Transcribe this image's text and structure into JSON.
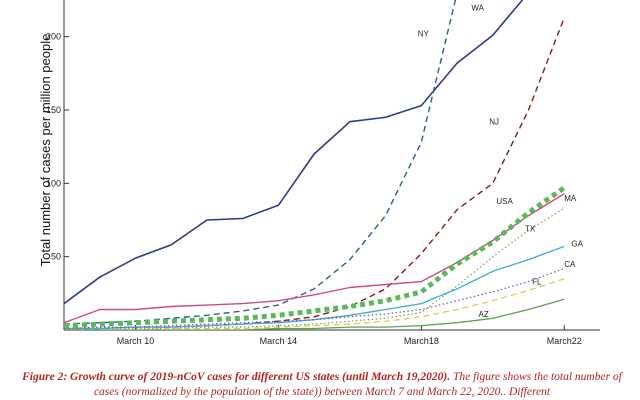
{
  "caption": {
    "label": "Figure 2:",
    "title": "Growth curve of 2019-nCoV cases for different US states (until March 19,2020).",
    "body": "The figure shows the total number of cases (normalized by the population of the state)) between March 7 and March 22, 2020.. Different"
  },
  "chart_data": {
    "type": "line",
    "ylabel": "Total number of cases per million people",
    "ylim": [
      0,
      225
    ],
    "yticks": [
      50,
      100,
      150,
      200
    ],
    "xdomain": [
      1,
      16
    ],
    "xticks": [
      {
        "x": 3,
        "label": "March 10"
      },
      {
        "x": 7,
        "label": "March 14"
      },
      {
        "x": 11,
        "label": "March18"
      },
      {
        "x": 15,
        "label": "March22"
      }
    ],
    "grid": false,
    "series": [
      {
        "name": "WA",
        "color": "#2b3a8c",
        "dash": "solid",
        "width": 1.6,
        "x": [
          1,
          2,
          3,
          4,
          5,
          6,
          7,
          8,
          9,
          10,
          11,
          12,
          13,
          14
        ],
        "y": [
          18,
          36,
          49,
          58,
          75,
          76,
          85,
          120,
          142,
          145,
          153,
          182,
          201,
          230
        ]
      },
      {
        "name": "NY",
        "color": "#2a5e8f",
        "dash": "dashed",
        "width": 1.4,
        "x": [
          1,
          2,
          3,
          4,
          5,
          6,
          7,
          8,
          9,
          10,
          11,
          12
        ],
        "y": [
          4,
          5,
          6,
          8,
          10,
          13,
          17,
          28,
          48,
          78,
          128,
          230
        ]
      },
      {
        "name": "NJ",
        "color": "#8b1a1a",
        "dash": "dashed",
        "width": 1.4,
        "x": [
          1,
          2,
          3,
          4,
          5,
          6,
          7,
          8,
          9,
          10,
          11,
          12,
          13,
          14,
          15
        ],
        "y": [
          1,
          1,
          2,
          2,
          3,
          4,
          6,
          9,
          16,
          28,
          52,
          82,
          100,
          150,
          213
        ]
      },
      {
        "name": "MA",
        "color": "#d14a7a",
        "dash": "solid",
        "width": 1.4,
        "x": [
          1,
          2,
          3,
          4,
          5,
          6,
          7,
          8,
          9,
          10,
          11,
          12,
          13,
          14,
          15
        ],
        "y": [
          5,
          14,
          14,
          16,
          17,
          18,
          20,
          24,
          29,
          31,
          33,
          46,
          61,
          78,
          93
        ]
      },
      {
        "name": "TX",
        "color": "#6aa84f",
        "dash": "dotted",
        "width": 1.2,
        "x": [
          1,
          2,
          3,
          4,
          5,
          6,
          7,
          8,
          9,
          10,
          11,
          12,
          13,
          14,
          15
        ],
        "y": [
          1,
          1,
          1,
          1,
          2,
          2,
          3,
          4,
          6,
          8,
          12,
          30,
          50,
          68,
          83
        ]
      },
      {
        "name": "GA",
        "color": "#3fa9d5",
        "dash": "solid",
        "width": 1.3,
        "x": [
          1,
          2,
          3,
          4,
          5,
          6,
          7,
          8,
          9,
          10,
          11,
          12,
          13,
          14,
          15
        ],
        "y": [
          1,
          1,
          2,
          2,
          3,
          4,
          5,
          7,
          10,
          14,
          18,
          28,
          40,
          48,
          57
        ]
      },
      {
        "name": "CA",
        "color": "#7b4fb3",
        "dash": "dotted",
        "width": 1.2,
        "x": [
          1,
          2,
          3,
          4,
          5,
          6,
          7,
          8,
          9,
          10,
          11,
          12,
          13,
          14,
          15
        ],
        "y": [
          1,
          2,
          2,
          3,
          4,
          5,
          6,
          7,
          9,
          11,
          14,
          20,
          26,
          33,
          42
        ]
      },
      {
        "name": "FL",
        "color": "#e3c24d",
        "dash": "dashed",
        "width": 1.2,
        "x": [
          1,
          2,
          3,
          4,
          5,
          6,
          7,
          8,
          9,
          10,
          11,
          12,
          13,
          14,
          15
        ],
        "y": [
          0,
          0,
          0,
          1,
          1,
          1,
          2,
          3,
          4,
          6,
          9,
          14,
          20,
          27,
          35
        ]
      },
      {
        "name": "AZ",
        "color": "#5aa64a",
        "dash": "solid",
        "width": 1.3,
        "x": [
          1,
          2,
          3,
          4,
          5,
          6,
          7,
          8,
          9,
          10,
          11,
          12,
          13,
          14,
          15
        ],
        "y": [
          0,
          0,
          0,
          0,
          0,
          0,
          1,
          1,
          2,
          2,
          3,
          5,
          8,
          14,
          21
        ]
      },
      {
        "name": "USA",
        "color": "#5cb85c",
        "dash": "heavy-dotted",
        "width": 5,
        "x": [
          1,
          2,
          3,
          4,
          5,
          6,
          7,
          8,
          9,
          10,
          11,
          12,
          13,
          14,
          15
        ],
        "y": [
          3,
          4,
          5,
          6,
          7,
          8,
          10,
          13,
          16,
          20,
          26,
          45,
          60,
          80,
          97
        ]
      }
    ],
    "annotations": [
      {
        "text": "WA",
        "x": 12.4,
        "y": 218
      },
      {
        "text": "NY",
        "x": 10.9,
        "y": 200
      },
      {
        "text": "NJ",
        "x": 12.9,
        "y": 140
      },
      {
        "text": "USA",
        "x": 13.1,
        "y": 86,
        "color": "#d33a3a",
        "big": true
      },
      {
        "text": "MA",
        "x": 15.0,
        "y": 88
      },
      {
        "text": "TX",
        "x": 13.9,
        "y": 67
      },
      {
        "text": "GA",
        "x": 15.2,
        "y": 57
      },
      {
        "text": "CA",
        "x": 15.0,
        "y": 43
      },
      {
        "text": "FL",
        "x": 14.1,
        "y": 31
      },
      {
        "text": "AZ",
        "x": 12.6,
        "y": 9
      }
    ]
  }
}
